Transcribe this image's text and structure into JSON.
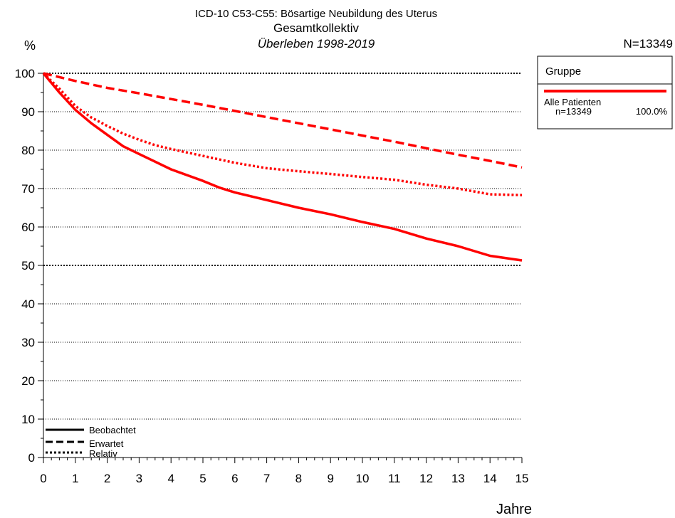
{
  "header": {
    "title_line1": "ICD-10 C53-C55: Bösartige Neubildung des Uterus",
    "title_line2": "Gesamtkollektiv",
    "title_line3": "Überleben 1998-2019",
    "n_total": "N=13349",
    "y_unit": "%",
    "x_unit": "Jahre"
  },
  "group_legend": {
    "title": "Gruppe",
    "entry_label": "Alle Patienten",
    "entry_n": "n=13349",
    "entry_pct": "100.0%"
  },
  "line_legend": {
    "observed": "Beobachtet",
    "expected": "Erwartet",
    "relative": "Relativ"
  },
  "colors": {
    "series": "#ff0000",
    "axis": "#000000"
  },
  "chart_data": {
    "type": "line",
    "title": "ICD-10 C53-C55: Bösartige Neubildung des Uterus",
    "subtitle": "Gesamtkollektiv",
    "xlabel": "Jahre",
    "ylabel": "%",
    "xlim": [
      0,
      15
    ],
    "ylim": [
      0,
      100
    ],
    "xticks": [
      0,
      1,
      2,
      3,
      4,
      5,
      6,
      7,
      8,
      9,
      10,
      11,
      12,
      13,
      14,
      15
    ],
    "yticks": [
      0,
      10,
      20,
      30,
      40,
      50,
      60,
      70,
      80,
      90,
      100
    ],
    "grid": "horizontal dotted",
    "legend_position": "bottom-left",
    "series": [
      {
        "name": "Beobachtet",
        "style": "solid",
        "x": [
          0,
          0.5,
          1,
          1.5,
          2,
          2.5,
          3,
          3.5,
          4,
          4.5,
          5,
          5.5,
          6,
          7,
          8,
          9,
          10,
          11,
          12,
          13,
          14,
          15
        ],
        "values": [
          100,
          95,
          90.5,
          87,
          84,
          81,
          79,
          77,
          75,
          73.5,
          72,
          70.3,
          69,
          67,
          65,
          63.3,
          61.3,
          59.5,
          57,
          55,
          52.5,
          51.3
        ]
      },
      {
        "name": "Erwartet",
        "style": "dashed",
        "x": [
          0,
          1,
          2,
          3,
          4,
          5,
          6,
          7,
          8,
          9,
          10,
          11,
          12,
          13,
          14,
          15
        ],
        "values": [
          100,
          98,
          96.2,
          94.8,
          93.3,
          91.8,
          90.2,
          88.6,
          87,
          85.4,
          83.8,
          82.2,
          80.5,
          78.8,
          77.2,
          75.5
        ]
      },
      {
        "name": "Relativ",
        "style": "dotted",
        "x": [
          0,
          0.5,
          1,
          1.5,
          2,
          2.5,
          3,
          3.5,
          4,
          5,
          6,
          7,
          8,
          9,
          10,
          11,
          12,
          13,
          14,
          15
        ],
        "values": [
          100,
          96,
          91.5,
          88.5,
          86.3,
          84.3,
          82.7,
          81.3,
          80.3,
          78.5,
          76.7,
          75.3,
          74.5,
          73.8,
          73,
          72.3,
          71,
          70,
          68.5,
          68.3
        ]
      }
    ]
  }
}
